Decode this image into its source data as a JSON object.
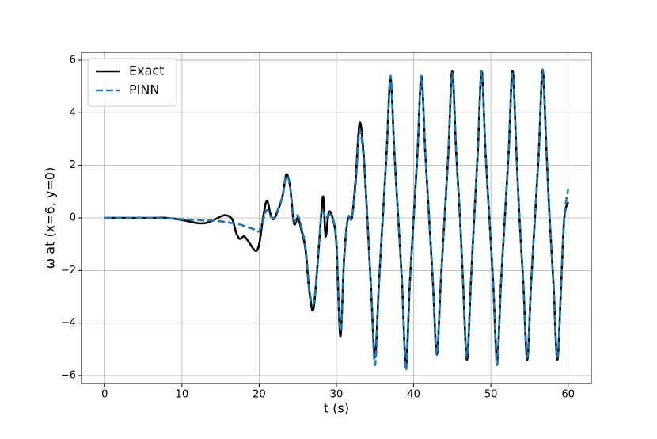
{
  "chart_data": {
    "type": "line",
    "x_label": "t (s)",
    "y_label": "ω at (x=6, y=0)",
    "x": [
      0,
      2,
      6,
      8,
      10,
      12,
      13,
      14,
      15.5,
      16.5,
      17,
      17.5,
      18,
      18.5,
      19.5,
      20,
      20.5,
      21,
      21.5,
      22,
      23,
      23.5,
      24,
      24.5,
      25,
      25.5,
      26,
      26.5,
      27,
      27.5,
      28,
      28.3,
      28.6,
      29,
      29.5,
      30,
      30.5,
      31,
      31.5,
      32,
      32.5,
      33,
      33.5,
      34,
      34.5,
      35,
      35.5,
      36,
      36.5,
      37,
      37.5,
      38,
      38.5,
      39,
      39.5,
      40,
      40.5,
      41,
      41.5,
      42,
      42.5,
      43,
      43.5,
      44,
      44.5,
      45,
      45.5,
      46,
      46.4,
      46.9,
      47.4,
      47.8,
      48.3,
      48.8,
      49.3,
      49.8,
      50.3,
      50.8,
      51.3,
      51.8,
      52.3,
      52.8,
      53.3,
      53.7,
      54.2,
      54.7,
      55.2,
      55.7,
      56.2,
      56.7,
      57.2,
      57.6,
      58.1,
      58.6,
      59.1,
      59.5,
      60
    ],
    "series": [
      {
        "name": "Exact",
        "color": "#000000",
        "dash": false,
        "values": [
          0,
          0,
          0,
          0,
          -0.08,
          -0.2,
          -0.2,
          -0.1,
          0.1,
          -0.05,
          -0.55,
          -0.8,
          -0.7,
          -0.85,
          -1.25,
          -1.0,
          0,
          0.65,
          0.1,
          0,
          0.8,
          1.65,
          1.2,
          -0.2,
          0,
          -0.5,
          -1.2,
          -2.8,
          -3.5,
          -2,
          0,
          0.8,
          -0.7,
          0.2,
          0,
          -1,
          -4.5,
          -1.5,
          0,
          0,
          1.5,
          3.6,
          2.5,
          0,
          -2.8,
          -5.3,
          -2.5,
          0,
          2.5,
          5.3,
          2.5,
          0,
          -2.5,
          -5.6,
          -2.5,
          0,
          2.5,
          5.4,
          2.5,
          0,
          -2.5,
          -5.2,
          -2.5,
          0,
          2.5,
          5.6,
          2.5,
          0,
          -2.5,
          -5.4,
          -2.5,
          -0.2,
          2.5,
          5.6,
          2.5,
          0,
          -2.5,
          -5.4,
          -2.5,
          0,
          2.5,
          5.6,
          2.5,
          0,
          -2.5,
          -5.4,
          -2.5,
          0,
          2.5,
          5.6,
          2.5,
          0,
          -2.5,
          -5.4,
          -2.5,
          0,
          0.6
        ]
      },
      {
        "name": "PINN",
        "color": "#1f77b4",
        "dash": true,
        "values": [
          0,
          0,
          0,
          -0.02,
          -0.05,
          -0.08,
          -0.1,
          -0.1,
          -0.15,
          -0.2,
          -0.22,
          -0.25,
          -0.3,
          -0.35,
          -0.45,
          -0.5,
          -0.1,
          0.3,
          0.05,
          0.05,
          0.8,
          1.6,
          1.2,
          -0.1,
          0.1,
          -0.4,
          -1.1,
          -2.7,
          -3.3,
          -2,
          0,
          0.2,
          0,
          0.1,
          0,
          -0.9,
          -4.3,
          -1.6,
          0,
          0,
          1.3,
          3.3,
          2.3,
          0,
          -2.8,
          -5.6,
          -2.6,
          0,
          2.5,
          5.4,
          2.5,
          0,
          -2.5,
          -5.8,
          -2.5,
          0,
          2.5,
          5.4,
          2.5,
          0,
          -2.5,
          -5.2,
          -2.5,
          0,
          2.5,
          5.5,
          2.5,
          0,
          -2.5,
          -5.3,
          -2.5,
          -0.1,
          2.5,
          5.6,
          2.5,
          0,
          -2.5,
          -5.6,
          -2.5,
          0,
          2.5,
          5.5,
          2.5,
          0,
          -2.5,
          -5.3,
          -2.5,
          0,
          2.5,
          5.65,
          2.5,
          0,
          -2.5,
          -5.3,
          -2.5,
          0,
          1.1
        ]
      }
    ],
    "xlim": [
      -3,
      63
    ],
    "ylim": [
      -6.3,
      6.3
    ],
    "xticks": [
      0,
      10,
      20,
      30,
      40,
      50,
      60
    ],
    "yticks": [
      {
        "value": -6,
        "label": "−6"
      },
      {
        "value": -4,
        "label": "−4"
      },
      {
        "value": -2,
        "label": "−2"
      },
      0,
      2,
      4,
      6
    ],
    "grid": true,
    "legend": "upper-left"
  }
}
